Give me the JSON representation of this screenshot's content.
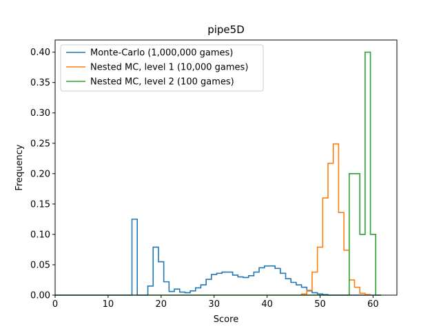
{
  "chart_data": {
    "type": "line",
    "title": "pipe5D",
    "xlabel": "Score",
    "ylabel": "Frequency",
    "xlim": [
      0,
      64.5
    ],
    "ylim": [
      0,
      0.42
    ],
    "xticks": [
      0,
      10,
      20,
      30,
      40,
      50,
      60
    ],
    "yticks": [
      0.0,
      0.05,
      0.1,
      0.15,
      0.2,
      0.25,
      0.3,
      0.35,
      0.4
    ],
    "xtick_labels": [
      "0",
      "10",
      "20",
      "30",
      "40",
      "50",
      "60"
    ],
    "ytick_labels": [
      "0.00",
      "0.05",
      "0.10",
      "0.15",
      "0.20",
      "0.25",
      "0.30",
      "0.35",
      "0.40"
    ],
    "grid": false,
    "legend_position": "top-left",
    "style": "step histogram",
    "series": [
      {
        "name": "Monte-Carlo (1,000,000 games)",
        "color": "#1f77b4",
        "bins": [
          [
            0,
            14.5,
            0.0
          ],
          [
            14.5,
            15.5,
            0.125
          ],
          [
            15.5,
            17.5,
            0.0
          ],
          [
            17.5,
            18.5,
            0.015
          ],
          [
            18.5,
            19.5,
            0.079
          ],
          [
            19.5,
            20.5,
            0.055
          ],
          [
            20.5,
            21.5,
            0.022
          ],
          [
            21.5,
            22.5,
            0.006
          ],
          [
            22.5,
            23.5,
            0.01
          ],
          [
            23.5,
            24.5,
            0.005
          ],
          [
            24.5,
            25.5,
            0.004
          ],
          [
            25.5,
            26.5,
            0.007
          ],
          [
            26.5,
            27.5,
            0.012
          ],
          [
            27.5,
            28.5,
            0.017
          ],
          [
            28.5,
            29.5,
            0.026
          ],
          [
            29.5,
            30.5,
            0.034
          ],
          [
            30.5,
            31.5,
            0.036
          ],
          [
            31.5,
            32.5,
            0.038
          ],
          [
            32.5,
            33.5,
            0.038
          ],
          [
            33.5,
            34.5,
            0.033
          ],
          [
            34.5,
            35.5,
            0.03
          ],
          [
            35.5,
            36.5,
            0.029
          ],
          [
            36.5,
            37.5,
            0.032
          ],
          [
            37.5,
            38.5,
            0.038
          ],
          [
            38.5,
            39.5,
            0.045
          ],
          [
            39.5,
            40.5,
            0.048
          ],
          [
            40.5,
            41.5,
            0.048
          ],
          [
            41.5,
            42.5,
            0.044
          ],
          [
            42.5,
            43.5,
            0.036
          ],
          [
            43.5,
            44.5,
            0.027
          ],
          [
            44.5,
            45.5,
            0.021
          ],
          [
            45.5,
            46.5,
            0.017
          ],
          [
            46.5,
            47.5,
            0.013
          ],
          [
            47.5,
            48.5,
            0.007
          ],
          [
            48.5,
            49.5,
            0.004
          ],
          [
            49.5,
            50.5,
            0.002
          ],
          [
            50.5,
            51.5,
            0.001
          ],
          [
            51.5,
            61.5,
            0.0
          ]
        ]
      },
      {
        "name": "Nested MC, level 1 (10,000 games)",
        "color": "#ff7f0e",
        "bins": [
          [
            46.5,
            47.5,
            0.002
          ],
          [
            47.5,
            48.5,
            0.008
          ],
          [
            48.5,
            49.5,
            0.038
          ],
          [
            49.5,
            50.5,
            0.079
          ],
          [
            50.5,
            51.5,
            0.16
          ],
          [
            51.5,
            52.5,
            0.217
          ],
          [
            52.5,
            53.5,
            0.249
          ],
          [
            53.5,
            54.5,
            0.136
          ],
          [
            54.5,
            55.5,
            0.074
          ],
          [
            55.5,
            56.5,
            0.025
          ],
          [
            56.5,
            57.5,
            0.013
          ],
          [
            57.5,
            58.5,
            0.003
          ],
          [
            58.5,
            59.5,
            0.001
          ]
        ]
      },
      {
        "name": "Nested MC, level 2 (100 games)",
        "color": "#2ca02c",
        "bins": [
          [
            0,
            55.5,
            0.0
          ],
          [
            55.5,
            57.5,
            0.2
          ],
          [
            57.5,
            58.5,
            0.1
          ],
          [
            58.5,
            59.5,
            0.4
          ],
          [
            59.5,
            60.5,
            0.1
          ],
          [
            60.5,
            61.5,
            0.0
          ]
        ]
      }
    ]
  }
}
